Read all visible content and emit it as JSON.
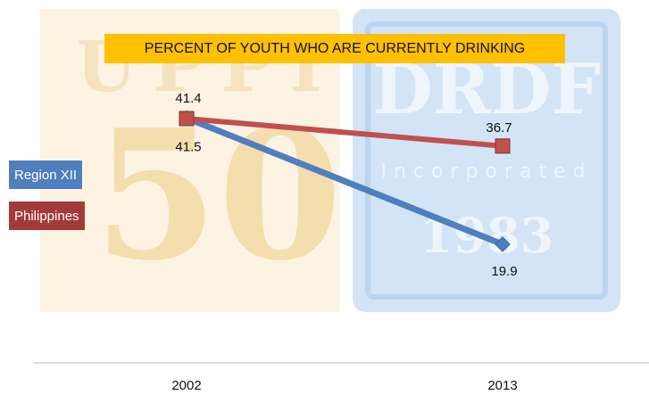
{
  "chart_data": {
    "type": "line",
    "title": "PERCENT OF YOUTH WHO ARE CURRENTLY DRINKING",
    "categories": [
      "2002",
      "2013"
    ],
    "series": [
      {
        "name": "Region XII",
        "values": [
          41.5,
          19.9
        ],
        "color": "#4f7fbf",
        "marker": "diamond"
      },
      {
        "name": "Philippines",
        "values": [
          41.4,
          36.7
        ],
        "color": "#c0504d",
        "marker": "square"
      }
    ],
    "xlabel": "",
    "ylabel": "",
    "grid": false,
    "legend_position": "left"
  },
  "background_logos": {
    "left_text": "UPPI",
    "left_number": "50",
    "right_text": "DRDF",
    "right_subtext": "Incorporated",
    "right_year": "1983"
  }
}
